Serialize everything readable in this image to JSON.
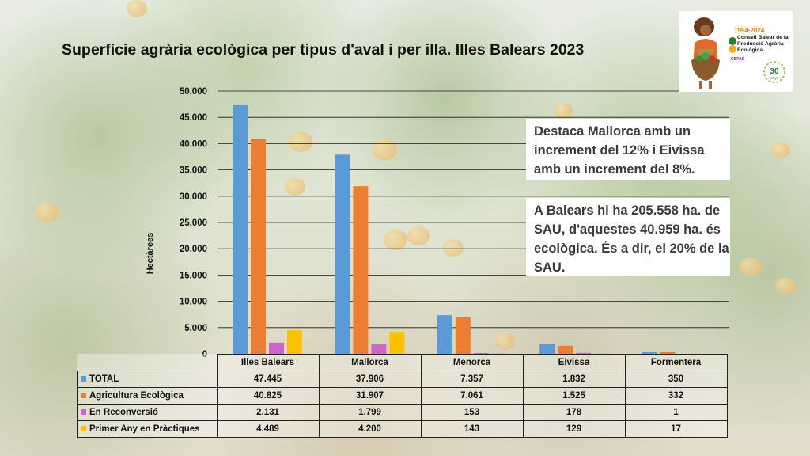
{
  "title": "Superfície agrària ecològica per tipus d'aval i per illa. Illes Balears 2023",
  "logo": {
    "years_start": "1994",
    "years_end": "2024",
    "org_line1": "Consell Balear de la",
    "org_line2": "Producció Agrària",
    "org_line3": "Ecològica",
    "acronym": "CBPAE",
    "anniversary_number": "30",
    "anniversary_word": "anys"
  },
  "callouts": {
    "first": "Destaca Mallorca amb un increment del 12% i Eivissa amb un increment del 8%.",
    "second": "A Balears hi ha 205.558 ha. de SAU, d'aquestes 40.959 ha. és ecològica. És a dir, el 20% de la SAU."
  },
  "colors": {
    "total": "#5b9bd5",
    "agricultura": "#ed7d31",
    "reconversio": "#cc66cc",
    "primer_any": "#ffc000"
  },
  "chart_data": {
    "type": "bar",
    "ylabel": "Hectàrees",
    "ylim": [
      0,
      50000
    ],
    "yticks": [
      "0",
      "5.000",
      "10.000",
      "15.000",
      "20.000",
      "25.000",
      "30.000",
      "35.000",
      "40.000",
      "45.000",
      "50.000"
    ],
    "ytick_values": [
      0,
      5000,
      10000,
      15000,
      20000,
      25000,
      30000,
      35000,
      40000,
      45000,
      50000
    ],
    "categories": [
      "Illes Balears",
      "Mallorca",
      "Menorca",
      "Eivissa",
      "Formentera"
    ],
    "grid": true,
    "legend": "data-table",
    "series": [
      {
        "name": "TOTAL",
        "values": [
          47445,
          37906,
          7357,
          1832,
          350
        ],
        "labels": [
          "47.445",
          "37.906",
          "7.357",
          "1.832",
          "350"
        ]
      },
      {
        "name": "Agricultura Ecològica",
        "values": [
          40825,
          31907,
          7061,
          1525,
          332
        ],
        "labels": [
          "40.825",
          "31.907",
          "7.061",
          "1.525",
          "332"
        ]
      },
      {
        "name": "En Reconversió",
        "values": [
          2131,
          1799,
          153,
          178,
          1
        ],
        "labels": [
          "2.131",
          "1.799",
          "153",
          "178",
          "1"
        ]
      },
      {
        "name": "Primer Any en Pràctiques",
        "values": [
          4489,
          4200,
          143,
          129,
          17
        ],
        "labels": [
          "4.489",
          "4.200",
          "143",
          "129",
          "17"
        ]
      }
    ]
  }
}
